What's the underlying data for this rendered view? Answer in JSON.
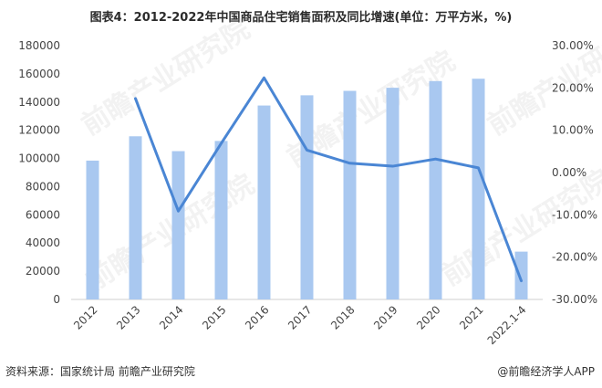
{
  "title": "图表4：2012-2022年中国商品住宅销售面积及同比增速(单位：万平方米，%)",
  "footer": {
    "source": "资料来源：国家统计局 前瞻产业研究院",
    "brand": "@前瞻经济学人APP"
  },
  "watermark": "前瞻产业研究院",
  "colors": {
    "bar": "#a9c8f0",
    "line": "#4a86d4",
    "axis": "#cfcfcf"
  },
  "chart_data": {
    "type": "bar",
    "categories": [
      "2012",
      "2013",
      "2014",
      "2015",
      "2016",
      "2017",
      "2018",
      "2019",
      "2020",
      "2021",
      "2022.1-4"
    ],
    "series": [
      {
        "type": "bar",
        "axis": "left",
        "values": [
          98468,
          115723,
          105188,
          112412,
          137540,
          144789,
          147929,
          150144,
          154878,
          156532,
          33918
        ]
      },
      {
        "type": "line",
        "axis": "right",
        "values": [
          null,
          17.5,
          -9.1,
          6.9,
          22.4,
          5.3,
          2.2,
          1.5,
          3.2,
          1.1,
          -25.6
        ]
      }
    ],
    "y_left": {
      "ticks": [
        "0",
        "20000",
        "40000",
        "60000",
        "80000",
        "100000",
        "120000",
        "140000",
        "160000",
        "180000"
      ],
      "range": [
        0,
        180000
      ]
    },
    "y_right": {
      "ticks": [
        "-30.00%",
        "-20.00%",
        "-10.00%",
        "0.00%",
        "10.00%",
        "20.00%",
        "30.00%"
      ],
      "range": [
        -30,
        30
      ]
    },
    "grid": false
  }
}
